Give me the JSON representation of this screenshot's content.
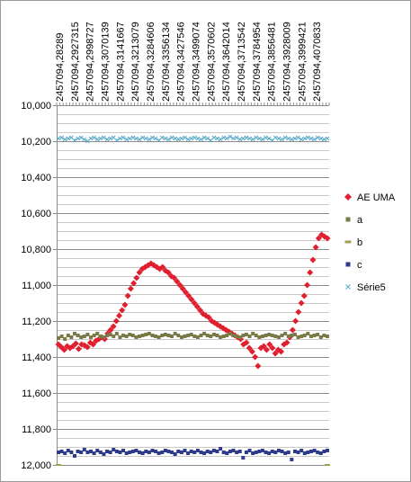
{
  "chart_data": {
    "type": "scatter",
    "title": "",
    "xlabel": "",
    "ylabel": "",
    "y_reversed": true,
    "ylim": [
      10000,
      12000
    ],
    "x_position": "top",
    "x_tick_labels": [
      "2457094,28289",
      "2457094,2927315",
      "2457094,2998727",
      "2457094,3070139",
      "2457094,3141667",
      "2457094,3213079",
      "2457094,3284606",
      "2457094,3356134",
      "2457094,3427546",
      "2457094,3499074",
      "2457094,3570602",
      "2457094,3642014",
      "2457094,3713542",
      "2457094,3784954",
      "2457094,3856481",
      "2457094,3928009",
      "2457094,3999421",
      "2457094,4070833"
    ],
    "y_tick_labels": [
      "10,000",
      "10,200",
      "10,400",
      "10,600",
      "10,800",
      "11,000",
      "11,200",
      "11,400",
      "11,600",
      "11,800",
      "12,000"
    ],
    "y_ticks": [
      10000,
      10200,
      10400,
      10600,
      10800,
      11000,
      11200,
      11400,
      11600,
      11800,
      12000
    ],
    "grid": "horizontal",
    "legend_position": "right",
    "point_count": 85,
    "series": [
      {
        "name": "AE UMA",
        "color": "#e0202e",
        "marker": "diamond",
        "values": [
          11330,
          11345,
          11360,
          11340,
          11350,
          11340,
          11325,
          11355,
          11330,
          11335,
          11345,
          11320,
          11330,
          11310,
          11300,
          11290,
          11300,
          11270,
          11250,
          11230,
          11200,
          11170,
          11140,
          11110,
          11060,
          11020,
          10990,
          10960,
          10930,
          10910,
          10900,
          10890,
          10880,
          10890,
          10900,
          10910,
          10900,
          10920,
          10930,
          10950,
          10960,
          10980,
          11000,
          11020,
          11040,
          11060,
          11080,
          11100,
          11120,
          11140,
          11160,
          11170,
          11180,
          11200,
          11210,
          11220,
          11230,
          11240,
          11250,
          11260,
          11270,
          11280,
          11290,
          11300,
          11330,
          11320,
          11350,
          11370,
          11400,
          11450,
          11350,
          11340,
          11360,
          11330,
          11350,
          11380,
          11360,
          11370,
          11330,
          11320,
          11290,
          11250,
          11200,
          11150,
          11100,
          11060,
          11000,
          10930,
          10860,
          10790,
          10740,
          10720,
          10730,
          10740
        ]
      },
      {
        "name": "a",
        "color": "#7a7a46",
        "marker": "square",
        "values": [
          11295,
          11285,
          11300,
          11280,
          11290,
          11270,
          11280,
          11290,
          11285,
          11275,
          11290,
          11280,
          11270,
          11285,
          11290,
          11280,
          11275,
          11285,
          11270,
          11290,
          11280,
          11285,
          11275,
          11280,
          11290,
          11285,
          11280,
          11275,
          11270,
          11280,
          11285,
          11290,
          11280,
          11275,
          11280,
          11285,
          11270,
          11280,
          11290,
          11285,
          11280,
          11275,
          11285,
          11290,
          11280,
          11270,
          11280,
          11285,
          11275,
          11280,
          11290,
          11285,
          11280,
          11270,
          11280,
          11285,
          11290,
          11280,
          11275,
          11285,
          11270,
          11280,
          11290,
          11285,
          11280,
          11275,
          11280,
          11285,
          11290,
          11280,
          11270,
          11285,
          11280,
          11275,
          11290,
          11285,
          11280,
          11270,
          11285,
          11280,
          11275,
          11290,
          11280,
          11285
        ]
      },
      {
        "name": "b",
        "color": "#a0a050",
        "marker": "dash",
        "values": [
          12000,
          12000
        ]
      },
      {
        "name": "c",
        "color": "#2e3a8c",
        "marker": "square",
        "values": [
          11930,
          11925,
          11935,
          11920,
          11930,
          11950,
          11925,
          11930,
          11915,
          11930,
          11925,
          11935,
          11920,
          11930,
          11940,
          11925,
          11930,
          11915,
          11925,
          11930,
          11920,
          11935,
          11930,
          11925,
          11920,
          11930,
          11935,
          11925,
          11930,
          11920,
          11925,
          11935,
          11930,
          11920,
          11925,
          11930,
          11940,
          11925,
          11930,
          11920,
          11935,
          11925,
          11930,
          11920,
          11930,
          11935,
          11925,
          11930,
          11920,
          11925,
          11910,
          11930,
          11935,
          11925,
          11920,
          11930,
          11925,
          11960,
          11930,
          11920,
          11935,
          11930,
          11925,
          11920,
          11930,
          11935,
          11925,
          11930,
          11920,
          11925,
          11935,
          11930,
          11970,
          11925,
          11930,
          11920,
          11935,
          11930,
          11925,
          11920,
          11930,
          11935,
          11925,
          11920
        ]
      },
      {
        "name": "Série5",
        "color": "#5aa8c8",
        "marker": "x",
        "values": [
          10185,
          10180,
          10190,
          10185,
          10180,
          10195,
          10185,
          10180,
          10190,
          10200,
          10185,
          10180,
          10190,
          10185,
          10180,
          10190,
          10185,
          10180,
          10195,
          10185,
          10180,
          10190,
          10185,
          10180,
          10185,
          10190,
          10180,
          10185,
          10190,
          10180,
          10185,
          10195,
          10180,
          10185,
          10190,
          10180,
          10185,
          10190,
          10185,
          10180,
          10190,
          10185,
          10180,
          10185,
          10190,
          10180,
          10185,
          10195,
          10180,
          10185,
          10190,
          10180,
          10185,
          10175,
          10185,
          10180,
          10190,
          10185,
          10180,
          10185,
          10190,
          10180,
          10185,
          10190,
          10180,
          10185,
          10195,
          10180,
          10185,
          10190,
          10180,
          10185,
          10190,
          10185,
          10180,
          10190,
          10185,
          10180,
          10185,
          10190,
          10180,
          10185,
          10190,
          10185
        ]
      }
    ]
  }
}
